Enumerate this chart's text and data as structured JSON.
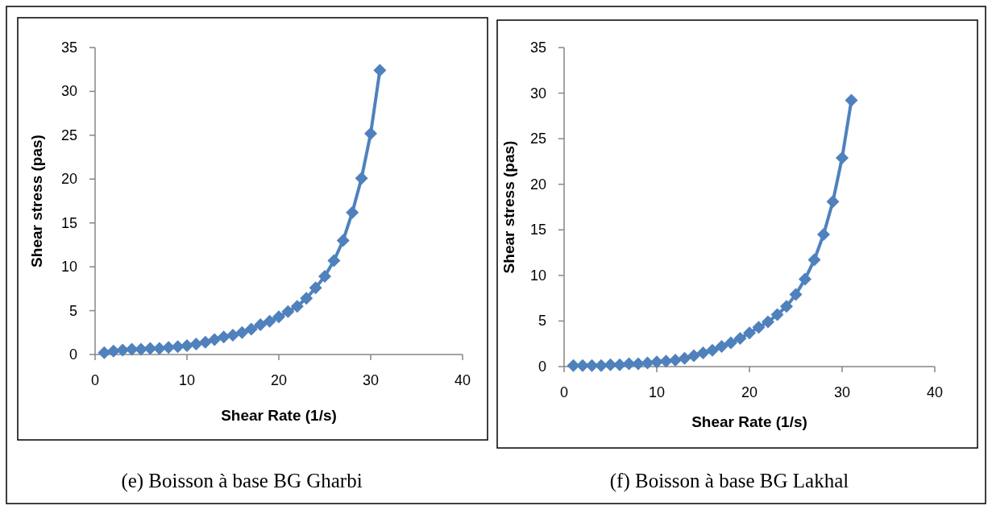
{
  "chart_data": [
    {
      "type": "line",
      "title": "(e) Boisson à base BG Gharbi",
      "xlabel": "Shear Rate (1/s)",
      "ylabel": "Shear stress (pas)",
      "x": [
        1,
        2,
        3,
        4,
        5,
        6,
        7,
        8,
        9,
        10,
        11,
        12,
        13,
        14,
        15,
        16,
        17,
        18,
        19,
        20,
        21,
        22,
        23,
        24,
        25,
        26,
        27,
        28,
        29,
        30,
        31
      ],
      "series": [
        {
          "color": "#4f81bd",
          "values": [
            0.2,
            0.4,
            0.5,
            0.6,
            0.6,
            0.7,
            0.7,
            0.8,
            0.9,
            1.0,
            1.2,
            1.4,
            1.7,
            2.0,
            2.2,
            2.5,
            2.9,
            3.4,
            3.8,
            4.3,
            4.9,
            5.5,
            6.4,
            7.6,
            8.9,
            10.7,
            13.0,
            16.2,
            20.1,
            25.2,
            32.4
          ]
        }
      ],
      "xlim": [
        0,
        40
      ],
      "xticks": [
        0,
        10,
        20,
        30,
        40
      ],
      "ylim": [
        0,
        35
      ],
      "yticks": [
        0,
        5,
        10,
        15,
        20,
        25,
        30,
        35
      ],
      "marker": "diamond",
      "grid": false
    },
    {
      "type": "line",
      "title": "(f) Boisson à base BG Lakhal",
      "xlabel": "Shear Rate (1/s)",
      "ylabel": "Shear stress (pas)",
      "x": [
        1,
        2,
        3,
        4,
        5,
        6,
        7,
        8,
        9,
        10,
        11,
        12,
        13,
        14,
        15,
        16,
        17,
        18,
        19,
        20,
        21,
        22,
        23,
        24,
        25,
        26,
        27,
        28,
        29,
        30,
        31
      ],
      "series": [
        {
          "color": "#4f81bd",
          "values": [
            0.1,
            0.1,
            0.1,
            0.1,
            0.2,
            0.2,
            0.3,
            0.3,
            0.4,
            0.5,
            0.6,
            0.7,
            0.9,
            1.2,
            1.5,
            1.8,
            2.2,
            2.6,
            3.1,
            3.7,
            4.3,
            4.9,
            5.7,
            6.6,
            7.9,
            9.6,
            11.7,
            14.5,
            18.1,
            22.9,
            29.2
          ]
        }
      ],
      "xlim": [
        0,
        40
      ],
      "xticks": [
        0,
        10,
        20,
        30,
        40
      ],
      "ylim": [
        0,
        35
      ],
      "yticks": [
        0,
        5,
        10,
        15,
        20,
        25,
        30,
        35
      ],
      "marker": "diamond",
      "grid": false
    }
  ]
}
